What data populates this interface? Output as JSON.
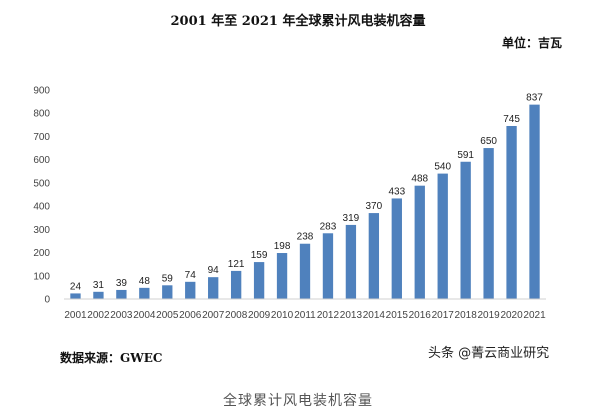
{
  "header": {
    "title": "2001 年至 2021 年全球累计风电装机容量",
    "unit": "单位：吉瓦"
  },
  "footer": {
    "source": "数据来源：GWEC",
    "watermark": "头条 @菁云商业研究",
    "caption": "全球累计风电装机容量"
  },
  "chart_data": {
    "type": "bar",
    "title": "2001 年至 2021 年全球累计风电装机容量",
    "xlabel": "",
    "ylabel": "",
    "unit": "单位：吉瓦",
    "categories": [
      "2001",
      "2002",
      "2003",
      "2004",
      "2005",
      "2006",
      "2007",
      "2008",
      "2009",
      "2010",
      "2011",
      "2012",
      "2013",
      "2014",
      "2015",
      "2016",
      "2017",
      "2018",
      "2019",
      "2020",
      "2021"
    ],
    "values": [
      24,
      31,
      39,
      48,
      59,
      74,
      94,
      121,
      159,
      198,
      238,
      283,
      319,
      370,
      433,
      488,
      540,
      591,
      650,
      745,
      837
    ],
    "ylim": [
      0,
      900
    ],
    "yticks": [
      0,
      100,
      200,
      300,
      400,
      500,
      600,
      700,
      800,
      900
    ],
    "grid": false,
    "legend": "none",
    "bar_color": "#4f81bd"
  }
}
